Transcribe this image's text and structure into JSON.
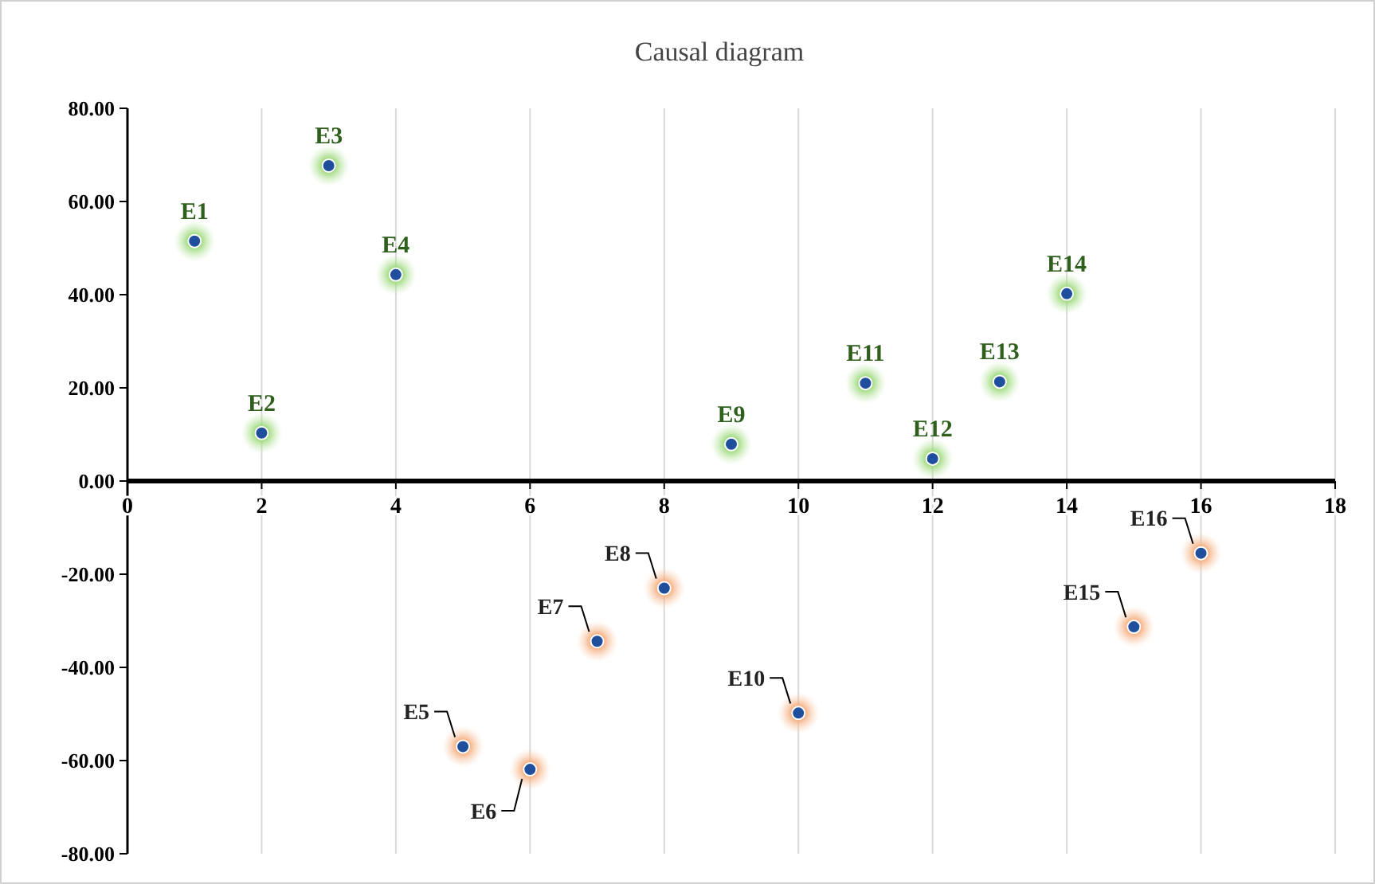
{
  "chart_data": {
    "type": "scatter",
    "title": "Causal diagram",
    "x": [
      1,
      2,
      3,
      4,
      5,
      6,
      7,
      8,
      9,
      10,
      11,
      12,
      13,
      14,
      15,
      16
    ],
    "series": [
      {
        "color": "#1f4e9c",
        "values": [
          51.5,
          10.3,
          67.7,
          44.3,
          -57,
          -61.9,
          -34.4,
          -23,
          7.9,
          -49.8,
          21,
          4.8,
          21.3,
          40.2,
          -31.3,
          -15.5
        ]
      }
    ],
    "marker": "circle",
    "grid": "x",
    "xlim": [
      0,
      18
    ],
    "xticks": [
      0,
      2,
      4,
      6,
      8,
      10,
      12,
      14,
      16,
      18
    ],
    "ylim": [
      -80,
      80
    ],
    "yticks": [
      {
        "value": 80,
        "label": "80.00"
      },
      {
        "value": 60,
        "label": "60.00"
      },
      {
        "value": 40,
        "label": "40.00"
      },
      {
        "value": 20,
        "label": "20.00"
      },
      {
        "value": 0,
        "label": "0.00"
      },
      {
        "value": -20,
        "label": "-20.00"
      },
      {
        "value": -40,
        "label": "-40.00"
      },
      {
        "value": -60,
        "label": "-60.00"
      },
      {
        "value": -80,
        "label": "-80.00"
      }
    ],
    "annotations": [
      {
        "text": "E1",
        "x": 1,
        "y": 51.5
      },
      {
        "text": "E2",
        "x": 2,
        "y": 10.3
      },
      {
        "text": "E3",
        "x": 3,
        "y": 67.7
      },
      {
        "text": "E4",
        "x": 4,
        "y": 44.3
      },
      {
        "text": "E5",
        "x": 5,
        "y": -57
      },
      {
        "text": "E6",
        "x": 6,
        "y": -61.9
      },
      {
        "text": "E7",
        "x": 7,
        "y": -34.4
      },
      {
        "text": "E8",
        "x": 8,
        "y": -23
      },
      {
        "text": "E9",
        "x": 9,
        "y": 7.9
      },
      {
        "text": "E10",
        "x": 10,
        "y": -49.8
      },
      {
        "text": "E11",
        "x": 11,
        "y": 21
      },
      {
        "text": "E12",
        "x": 12,
        "y": 4.8
      },
      {
        "text": "E13",
        "x": 13,
        "y": 21.3
      },
      {
        "text": "E14",
        "x": 14,
        "y": 40.2
      },
      {
        "text": "E15",
        "x": 15,
        "y": -31.3
      },
      {
        "text": "E16",
        "x": 16,
        "y": -15.5
      }
    ]
  }
}
